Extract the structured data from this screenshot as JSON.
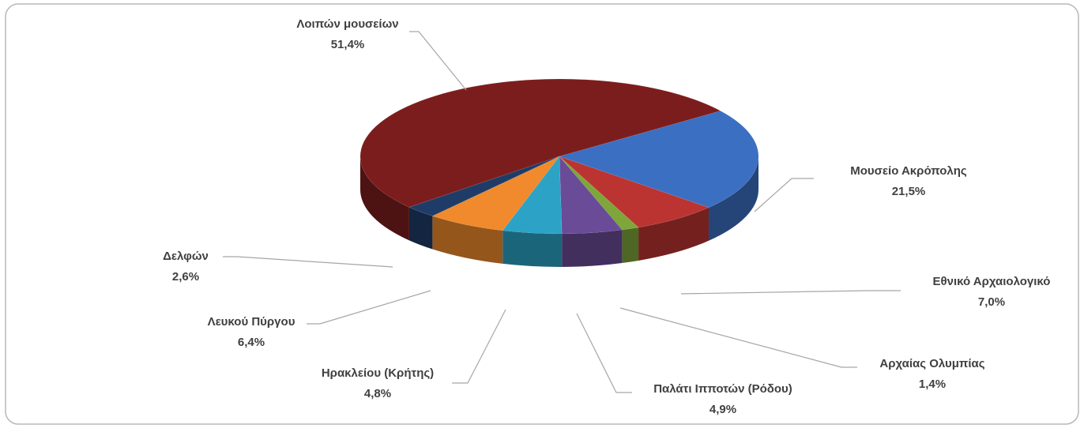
{
  "chart_data": {
    "type": "pie3d",
    "categories": [
      "Μουσείο Ακρόπολης",
      "Εθνικό Αρχαιολογικό",
      "Αρχαίας Ολυμπίας",
      "Παλάτι Ιπποτών (Ρόδου)",
      "Ηρακλείου (Κρήτης)",
      "Λευκού Πύργου",
      "Δελφών",
      "Λοιπών μουσείων"
    ],
    "values": [
      21.5,
      7.0,
      1.4,
      4.9,
      4.8,
      6.4,
      2.6,
      51.4
    ],
    "value_labels": [
      "21,5%",
      "7,0%",
      "1,4%",
      "4,9%",
      "4,8%",
      "6,4%",
      "2,6%",
      "51,4%"
    ],
    "colors": [
      "#3b6fc2",
      "#bb3431",
      "#7ea63a",
      "#6a4b98",
      "#2ca3c6",
      "#f08a2c",
      "#1f3c68",
      "#7c1d1d"
    ]
  }
}
